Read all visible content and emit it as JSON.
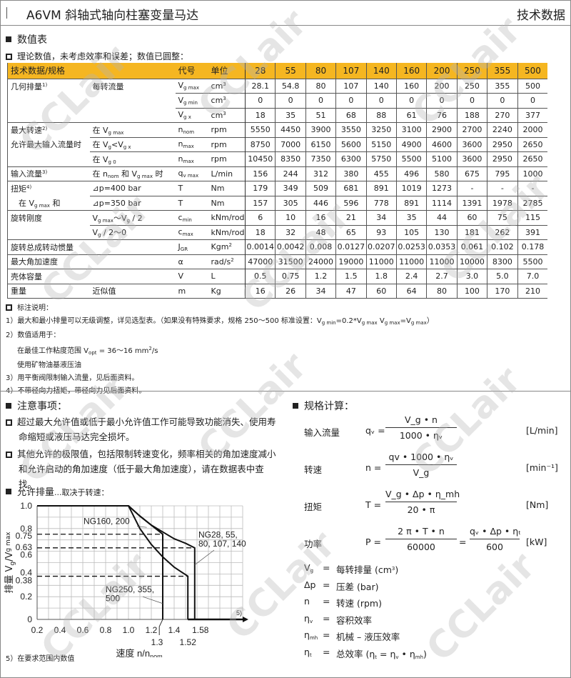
{
  "header": {
    "title": "A6VM 斜轴式轴向柱塞变量马达",
    "right": "技术数据"
  },
  "section1": {
    "title": "数值表",
    "subtitle": "理论数值，未考虑效率和误差；数值已圆整："
  },
  "table": {
    "headers": [
      "技术数据/规格",
      "代号",
      "单位"
    ],
    "sizes": [
      "28",
      "55",
      "80",
      "107",
      "140",
      "160",
      "200",
      "250",
      "355",
      "500"
    ],
    "rows": [
      {
        "l1": [
          [
            "几何排量",
            ""
          ],
          [
            "1)",
            "sup"
          ]
        ],
        "l2": [
          [
            "每转流量",
            ""
          ]
        ],
        "sym": [
          [
            "V",
            ""
          ],
          [
            "g max",
            "sub"
          ]
        ],
        "unit": [
          [
            "cm",
            ""
          ],
          [
            "3",
            "sup"
          ]
        ],
        "values": [
          "28.1",
          "54.8",
          "80",
          "107",
          "140",
          "160",
          "200",
          "250",
          "355",
          "500"
        ]
      },
      {
        "l1": [],
        "l2": [],
        "sym": [
          [
            "V",
            ""
          ],
          [
            "g min",
            "sub"
          ]
        ],
        "unit": [
          [
            "cm",
            ""
          ],
          [
            "3",
            "sup"
          ]
        ],
        "values": [
          "0",
          "0",
          "0",
          "0",
          "0",
          "0",
          "0",
          "0",
          "0",
          "0"
        ]
      },
      {
        "l1": [],
        "l2": [],
        "sym": [
          [
            "V",
            ""
          ],
          [
            "g x",
            "sub"
          ]
        ],
        "unit": [
          [
            "cm",
            ""
          ],
          [
            "3",
            "sup"
          ]
        ],
        "values": [
          "18",
          "35",
          "51",
          "68",
          "88",
          "61",
          "76",
          "188",
          "270",
          "377"
        ]
      },
      {
        "l1": [
          [
            "最大转速",
            ""
          ],
          [
            "2)",
            "sup"
          ]
        ],
        "l2": [
          [
            "在 V",
            ""
          ],
          [
            "g max",
            "sub"
          ]
        ],
        "sym": [
          [
            "n",
            ""
          ],
          [
            "nom",
            "sub"
          ]
        ],
        "unit": [
          [
            "rpm",
            ""
          ]
        ],
        "values": [
          "5550",
          "4450",
          "3900",
          "3550",
          "3250",
          "3100",
          "2900",
          "2700",
          "2240",
          "2000"
        ]
      },
      {
        "l1": [
          [
            "允许最大输入流量时",
            ""
          ]
        ],
        "l2": [
          [
            "在 V",
            ""
          ],
          [
            "g",
            "sub"
          ],
          [
            "<V",
            ""
          ],
          [
            "g x",
            "sub"
          ]
        ],
        "sym": [
          [
            "n",
            ""
          ],
          [
            "max",
            "sub"
          ]
        ],
        "unit": [
          [
            "rpm",
            ""
          ]
        ],
        "values": [
          "8750",
          "7000",
          "6150",
          "5600",
          "5150",
          "4900",
          "4600",
          "3600",
          "2950",
          "2650"
        ],
        "cont": true
      },
      {
        "l1": [],
        "l2": [
          [
            "在 V",
            ""
          ],
          [
            "g 0",
            "sub"
          ]
        ],
        "sym": [
          [
            "n",
            ""
          ],
          [
            "max",
            "sub"
          ]
        ],
        "unit": [
          [
            "rpm",
            ""
          ]
        ],
        "values": [
          "10450",
          "8350",
          "7350",
          "6300",
          "5750",
          "5500",
          "5100",
          "3600",
          "2950",
          "2650"
        ]
      },
      {
        "l1": [
          [
            "输入流量",
            ""
          ],
          [
            "3)",
            "sup"
          ]
        ],
        "l2": [
          [
            "在 n",
            ""
          ],
          [
            "nom",
            "sub"
          ],
          [
            " 和 V",
            ""
          ],
          [
            "g max",
            "sub"
          ],
          [
            " 时",
            ""
          ]
        ],
        "sym": [
          [
            "q",
            ""
          ],
          [
            "v max",
            "sub"
          ]
        ],
        "unit": [
          [
            "L/min",
            ""
          ]
        ],
        "values": [
          "156",
          "244",
          "312",
          "380",
          "455",
          "496",
          "580",
          "675",
          "795",
          "1000"
        ]
      },
      {
        "l1": [
          [
            "扭矩",
            ""
          ],
          [
            "4)",
            "sup"
          ]
        ],
        "l2": [
          [
            "⊿p=400 bar",
            ""
          ]
        ],
        "sym": [
          [
            "T",
            ""
          ]
        ],
        "unit": [
          [
            "Nm",
            ""
          ]
        ],
        "values": [
          "179",
          "349",
          "509",
          "681",
          "891",
          "1019",
          "1273",
          "-",
          "-",
          "-"
        ]
      },
      {
        "l1": [
          [
            "　在 V",
            ""
          ],
          [
            "g max",
            "sub"
          ],
          [
            " 和",
            ""
          ]
        ],
        "l2": [
          [
            "⊿p=350 bar",
            ""
          ]
        ],
        "sym": [
          [
            "T",
            ""
          ]
        ],
        "unit": [
          [
            "Nm",
            ""
          ]
        ],
        "values": [
          "157",
          "305",
          "446",
          "596",
          "778",
          "891",
          "1114",
          "1391",
          "1978",
          "2785"
        ],
        "cont": true
      },
      {
        "l1": [
          [
            "旋转刚度",
            ""
          ]
        ],
        "l2": [
          [
            "V",
            ""
          ],
          [
            "g max",
            "sub"
          ],
          [
            "～V",
            ""
          ],
          [
            "g",
            "sub"
          ],
          [
            " / 2",
            ""
          ]
        ],
        "sym": [
          [
            "c",
            ""
          ],
          [
            "min",
            "sub"
          ]
        ],
        "unit": [
          [
            "kNm/rod",
            ""
          ]
        ],
        "values": [
          "6",
          "10",
          "16",
          "21",
          "34",
          "35",
          "44",
          "60",
          "75",
          "115"
        ]
      },
      {
        "l1": [],
        "l2": [
          [
            "V",
            ""
          ],
          [
            "g",
            "sub"
          ],
          [
            " / 2～0",
            ""
          ]
        ],
        "sym": [
          [
            "c",
            ""
          ],
          [
            "max",
            "sub"
          ]
        ],
        "unit": [
          [
            "kNm/rod",
            ""
          ]
        ],
        "values": [
          "18",
          "32",
          "48",
          "65",
          "93",
          "105",
          "130",
          "181",
          "262",
          "391"
        ]
      },
      {
        "l1": [
          [
            "旋转总成转动惯量",
            ""
          ]
        ],
        "l2": [],
        "sym": [
          [
            "J",
            ""
          ],
          [
            "GR",
            "sub"
          ]
        ],
        "unit": [
          [
            "Kgm",
            ""
          ],
          [
            "2",
            "sup"
          ]
        ],
        "values": [
          "0.0014",
          "0.0042",
          "0.008",
          "0.0127",
          "0.0207",
          "0.0253",
          "0.0353",
          "0.061",
          "0.102",
          "0.178"
        ]
      },
      {
        "l1": [
          [
            "最大角加速度",
            ""
          ]
        ],
        "l2": [],
        "sym": [
          [
            "α",
            ""
          ]
        ],
        "unit": [
          [
            "rad/s",
            ""
          ],
          [
            "2",
            "sup"
          ]
        ],
        "values": [
          "47000",
          "31500",
          "24000",
          "19000",
          "11000",
          "11000",
          "11000",
          "10000",
          "8300",
          "5500"
        ]
      },
      {
        "l1": [
          [
            "壳体容量",
            ""
          ]
        ],
        "l2": [],
        "sym": [
          [
            "V",
            ""
          ]
        ],
        "unit": [
          [
            "L",
            ""
          ]
        ],
        "values": [
          "0.5",
          "0.75",
          "1.2",
          "1.5",
          "1.8",
          "2.4",
          "2.7",
          "3.0",
          "5.0",
          "7.0"
        ]
      },
      {
        "l1": [
          [
            "重量",
            ""
          ]
        ],
        "l2": [
          [
            "近似值",
            ""
          ]
        ],
        "sym": [
          [
            "m",
            ""
          ]
        ],
        "unit": [
          [
            "Kg",
            ""
          ]
        ],
        "values": [
          "16",
          "26",
          "34",
          "47",
          "60",
          "64",
          "80",
          "100",
          "170",
          "210"
        ]
      }
    ]
  },
  "notes": {
    "title": "标注说明：",
    "lines": [
      {
        "indent": false,
        "rich": [
          [
            "1）最大和最小排量可以无级调整，详见选型表。（如果没有特殊要求，规格 250～500 标准设置：V",
            ""
          ],
          [
            "g min",
            "sub"
          ],
          [
            "=0.2*V",
            ""
          ],
          [
            "g max",
            "sub"
          ],
          [
            "  V",
            ""
          ],
          [
            "g max",
            "sub"
          ],
          [
            "=V",
            ""
          ],
          [
            "g max",
            "sub"
          ],
          [
            "）",
            ""
          ]
        ]
      },
      {
        "indent": false,
        "rich": [
          [
            "2）数值适用于：",
            ""
          ]
        ]
      },
      {
        "indent": true,
        "rich": [
          [
            "在最佳工作粘度范围 V",
            ""
          ],
          [
            "opt",
            "sub"
          ],
          [
            " = 36～16 mm",
            ""
          ],
          [
            "2",
            "sup"
          ],
          [
            "/s",
            ""
          ]
        ]
      },
      {
        "indent": true,
        "rich": [
          [
            "使用矿物油基液压油",
            ""
          ]
        ]
      },
      {
        "indent": false,
        "rich": [
          [
            "3）用平衡阀限制输入流量，见后面资料。",
            ""
          ]
        ]
      },
      {
        "indent": false,
        "rich": [
          [
            "4）不带径向力扭矩，带径向力见后面资料。",
            ""
          ]
        ]
      }
    ]
  },
  "attention": {
    "title": "注意事项：",
    "items": [
      "超过最大允许值或低于最小允许值工作可能导致功能消失、使用寿命缩短或液压马达完全损坏。",
      "其他允许的极限值，包括限制转速变化，频率相关的角加速度减小和允许启动的角加速度（低于最大角加速度），请在数据表中查找。"
    ]
  },
  "chart_section": {
    "title": "允许排量",
    "title_suffix": "...取决于转速：",
    "footnote": "5）在要求范围内数值"
  },
  "chart_data": {
    "type": "line",
    "xlabel": "速度 n/n",
    "xlabel_sub": "nom",
    "ylabel": "排量 V",
    "ylabel_sub1": "g",
    "ylabel_mid": "/V",
    "ylabel_sub2": "g max",
    "xlim": [
      0.2,
      2.0
    ],
    "ylim": [
      0,
      1.0
    ],
    "grid": true,
    "xticks": [
      "0.2",
      "0.4",
      "0.6",
      "0.8",
      "1.0",
      "1.2",
      "1.4",
      "1.58"
    ],
    "xticks_extra": [
      "1.3",
      "1.52"
    ],
    "yticks": [
      "1.0",
      "0.8",
      "0.75",
      "0.63",
      "0.6",
      "0.4",
      "0.38",
      "0.2",
      "0"
    ],
    "axis_note": "5)",
    "series": [
      {
        "name": "NG28, 55, 80, 107, 140",
        "label_lines": [
          "NG28, 55,",
          "80, 107, 140"
        ],
        "x": [
          0.2,
          1.0,
          1.1,
          1.2,
          1.3,
          1.4,
          1.5,
          1.58,
          1.58
        ],
        "y": [
          1.0,
          1.0,
          0.91,
          0.83,
          0.77,
          0.71,
          0.67,
          0.63,
          0
        ]
      },
      {
        "name": "NG160, 200",
        "label_lines": [
          "NG160, 200"
        ],
        "x": [
          0.2,
          1.0,
          1.1,
          1.2,
          1.3,
          1.3
        ],
        "y": [
          1.0,
          1.0,
          0.91,
          0.83,
          0.75,
          0
        ]
      },
      {
        "name": "NG250, 355, 500",
        "label_lines": [
          "NG250, 355,",
          "500"
        ],
        "x": [
          0.2,
          1.0,
          1.1,
          1.2,
          1.3,
          1.4,
          1.52,
          1.52
        ],
        "y": [
          1.0,
          1.0,
          0.8,
          0.66,
          0.55,
          0.46,
          0.38,
          0
        ]
      }
    ]
  },
  "calc": {
    "title": "规格计算：",
    "formulas": [
      {
        "label": "输入流量",
        "lhs": "qᵥ =",
        "num": "V_g • n",
        "den": "1000 • ηᵥ",
        "unit": "[L/min]"
      },
      {
        "label": "转速",
        "lhs": "n =",
        "num": "qv • 1000 • ηᵥ",
        "den": "V_g",
        "unit": "[min⁻¹]"
      },
      {
        "label": "扭矩",
        "lhs": "T =",
        "num": "V_g • Δp • η_mh",
        "den": "20 • π",
        "unit": "[Nm]"
      },
      {
        "label": "功率",
        "lhs": "P =",
        "num": "2 π • T • n",
        "den": "60000",
        "num2": "qᵥ • Δp • ηₜ",
        "den2": "600",
        "unit": "[kW]"
      }
    ],
    "defs": [
      {
        "sym": [
          [
            "V",
            ""
          ],
          [
            "g",
            "sub"
          ]
        ],
        "text": [
          [
            "每转排量 (cm",
            ""
          ],
          [
            "3",
            "sup"
          ],
          [
            ")",
            ""
          ]
        ]
      },
      {
        "sym": [
          [
            "Δp",
            ""
          ]
        ],
        "text": [
          [
            "压差 (bar)",
            ""
          ]
        ]
      },
      {
        "sym": [
          [
            "n",
            ""
          ]
        ],
        "text": [
          [
            "转速 (rpm)",
            ""
          ]
        ]
      },
      {
        "sym": [
          [
            "η",
            ""
          ],
          [
            "v",
            "sub"
          ]
        ],
        "text": [
          [
            "容积效率",
            ""
          ]
        ]
      },
      {
        "sym": [
          [
            "η",
            ""
          ],
          [
            "mh",
            "sub"
          ]
        ],
        "text": [
          [
            "机械 – 液压效率",
            ""
          ]
        ]
      },
      {
        "sym": [
          [
            "η",
            ""
          ],
          [
            "t",
            "sub"
          ]
        ],
        "text": [
          [
            "总效率 (η",
            ""
          ],
          [
            "t",
            "sub"
          ],
          [
            " = η",
            ""
          ],
          [
            "v",
            "sub"
          ],
          [
            " • η",
            ""
          ],
          [
            "mh",
            "sub"
          ],
          [
            ")",
            ""
          ]
        ]
      }
    ]
  },
  "watermark": "CCLair",
  "colors": {
    "header_yellow": "#f5b621",
    "text": "#222222"
  }
}
